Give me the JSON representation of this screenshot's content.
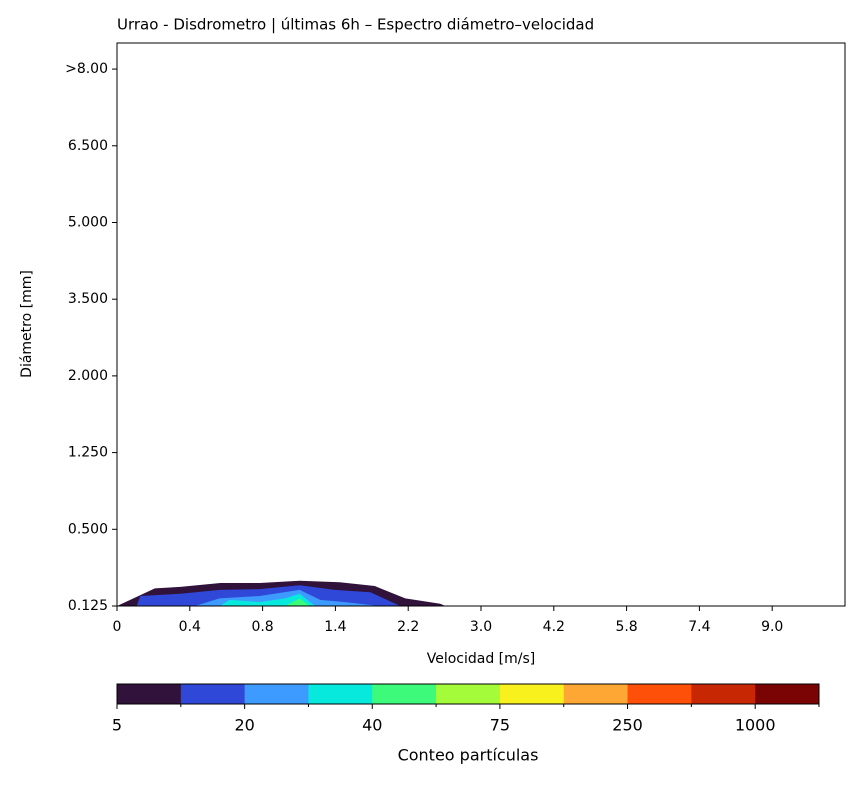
{
  "chart_data": {
    "type": "contour",
    "title": "Urrao - Disdrometro | últimas 6h – Espectro diámetro–velocidad",
    "xlabel": "Velocidad [m/s]",
    "ylabel": "Diámetro [mm]",
    "xlim": [
      0,
      10
    ],
    "xticks": [
      {
        "value": 0,
        "label": "0"
      },
      {
        "value": 1,
        "label": "0.4"
      },
      {
        "value": 2,
        "label": "0.8"
      },
      {
        "value": 3,
        "label": "1.4"
      },
      {
        "value": 4,
        "label": "2.2"
      },
      {
        "value": 5,
        "label": "3.0"
      },
      {
        "value": 6,
        "label": "4.2"
      },
      {
        "value": 7,
        "label": "5.8"
      },
      {
        "value": 8,
        "label": "7.4"
      },
      {
        "value": 9,
        "label": "9.0"
      }
    ],
    "ylim": [
      0,
      7.34
    ],
    "yticks": [
      {
        "value": 0,
        "label": "0.125"
      },
      {
        "value": 1,
        "label": "0.500"
      },
      {
        "value": 2,
        "label": "1.250"
      },
      {
        "value": 3,
        "label": "2.000"
      },
      {
        "value": 4,
        "label": "3.500"
      },
      {
        "value": 5,
        "label": "5.000"
      },
      {
        "value": 6,
        "label": "6.500"
      },
      {
        "value": 7,
        "label": ">8.00"
      }
    ],
    "colorbar": {
      "label": "Conteo partículas",
      "levels": [
        5,
        null,
        20,
        null,
        40,
        null,
        75,
        null,
        250,
        null,
        1000,
        null
      ],
      "colors": [
        "#30123b",
        "#3048d8",
        "#3d9bff",
        "#07e9dd",
        "#3dfa7a",
        "#a3fb3a",
        "#f9f11e",
        "#fea734",
        "#fe5008",
        "#c82703",
        "#7a0403"
      ]
    },
    "contours": [
      {
        "level": 0,
        "x": [
          0,
          0.52,
          0.87,
          1.42,
          1.96,
          2.51,
          3.06,
          3.54,
          3.96,
          4.44,
          4.51
        ],
        "y": [
          0,
          0.23,
          0.25,
          0.3,
          0.3,
          0.33,
          0.31,
          0.26,
          0.1,
          0.03,
          0
        ]
      },
      {
        "level": 1,
        "x": [
          0.27,
          0.32,
          0.87,
          1.41,
          1.96,
          2.51,
          2.99,
          3.48,
          3.89
        ],
        "y": [
          0,
          0.13,
          0.16,
          0.21,
          0.22,
          0.27,
          0.21,
          0.18,
          0
        ]
      },
      {
        "level": 2,
        "x": [
          1.07,
          1.41,
          1.96,
          2.51,
          2.79,
          3.13,
          3.61
        ],
        "y": [
          0,
          0.1,
          0.13,
          0.21,
          0.08,
          0.05,
          0
        ]
      },
      {
        "level": 3,
        "x": [
          1.41,
          1.55,
          1.96,
          2.31,
          2.51,
          2.72
        ],
        "y": [
          0,
          0.08,
          0.05,
          0.1,
          0.16,
          0
        ]
      },
      {
        "level": 4,
        "x": [
          2.31,
          2.51,
          2.65
        ],
        "y": [
          0,
          0.1,
          0
        ]
      }
    ]
  }
}
